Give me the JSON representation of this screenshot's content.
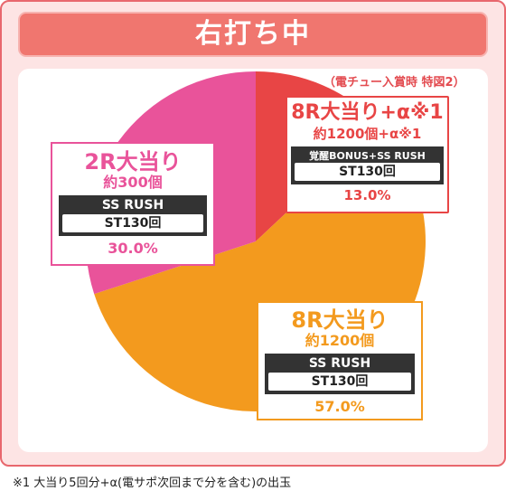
{
  "title": "右打ち中",
  "note": "（電チュー入賞時 特図2）",
  "footnote": "※1 大当り5回分+α(電サポ次回まで分を含む)の出玉",
  "colors": {
    "red": "#e84545",
    "orange": "#f39a1e",
    "pink": "#e9539a",
    "frame": "#e8676d"
  },
  "chart_data": {
    "type": "pie",
    "title": "右打ち中",
    "slices": [
      {
        "label": "8R大当り+α※1",
        "sub": "約1200個+α※1",
        "mode": "覚醒BONUS+SS RUSH",
        "st": "ST130回",
        "value": 13.0,
        "pct": "13.0%",
        "color": "#e84545"
      },
      {
        "label": "8R大当り",
        "sub": "約1200個",
        "mode": "SS RUSH",
        "st": "ST130回",
        "value": 57.0,
        "pct": "57.0%",
        "color": "#f39a1e"
      },
      {
        "label": "2R大当り",
        "sub": "約300個",
        "mode": "SS RUSH",
        "st": "ST130回",
        "value": 30.0,
        "pct": "30.0%",
        "color": "#e9539a"
      }
    ]
  }
}
